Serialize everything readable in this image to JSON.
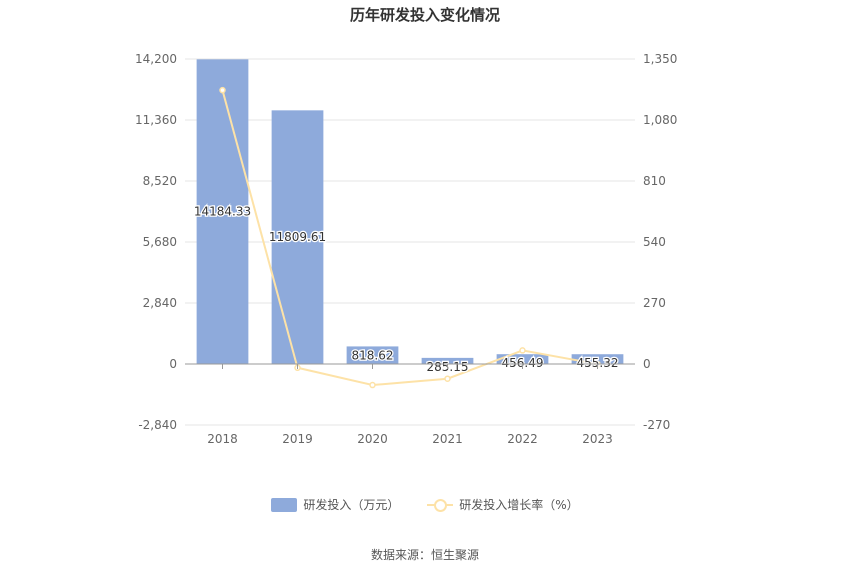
{
  "chart_data": {
    "type": "bar",
    "title": "历年研发投入变化情况",
    "categories": [
      "2018",
      "2019",
      "2020",
      "2021",
      "2022",
      "2023"
    ],
    "series": [
      {
        "name": "研发投入（万元）",
        "type": "bar",
        "axis": "left",
        "values": [
          14184.33,
          11809.61,
          818.62,
          285.15,
          456.49,
          455.32
        ],
        "labels": [
          "14184.33",
          "11809.61",
          "818.62",
          "285.15",
          "456.49",
          "455.32"
        ],
        "color": "#8eaadb"
      },
      {
        "name": "研发投入增长率（%）",
        "type": "line",
        "axis": "right",
        "values": [
          1212,
          -16.7,
          -93.1,
          -65.2,
          60.1,
          -0.3
        ],
        "color": "#fde2a7"
      }
    ],
    "y_left": {
      "min": -2840,
      "max": 14200,
      "ticks": [
        "14,200",
        "11,360",
        "8,520",
        "5,680",
        "2,840",
        "0",
        "-2,840"
      ]
    },
    "y_right": {
      "min": -270,
      "max": 1350,
      "ticks": [
        "1,350",
        "1,080",
        "810",
        "540",
        "270",
        "0",
        "-270"
      ]
    },
    "grid": true,
    "legend_position": "bottom"
  },
  "source": "数据来源：恒生聚源"
}
